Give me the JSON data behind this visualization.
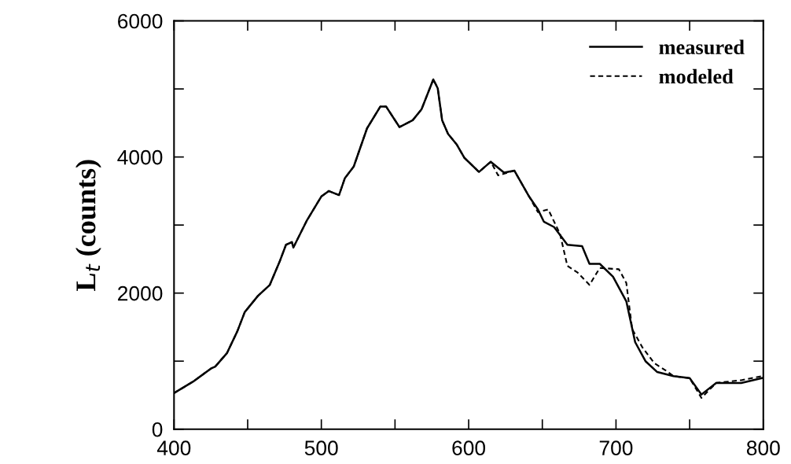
{
  "chart_data": {
    "type": "line",
    "ylabel": "L$_{t}$ (counts)",
    "xlim": [
      400,
      800
    ],
    "ylim": [
      0,
      6000
    ],
    "xticks": [
      400,
      {
        "value": 450,
        "label": null
      },
      500,
      {
        "value": 550,
        "label": null
      },
      600,
      {
        "value": 650,
        "label": null
      },
      700,
      {
        "value": 750,
        "label": null
      },
      800
    ],
    "yticks": [
      0,
      {
        "value": 1000,
        "label": null
      },
      2000,
      {
        "value": 3000,
        "label": null
      },
      4000,
      {
        "value": 5000,
        "label": null
      },
      6000
    ],
    "grid": false,
    "legend": "top right",
    "marker": "none",
    "series": [
      {
        "name": "measured",
        "color": "#000000",
        "line_style": "solid",
        "x": [
          400,
          413,
          425,
          428,
          436,
          443,
          448,
          457,
          465,
          472,
          476,
          480,
          481,
          490,
          500,
          505,
          512,
          516,
          522,
          531,
          540,
          544,
          553,
          562,
          568,
          576,
          579,
          582,
          586,
          592,
          597,
          607,
          615,
          624,
          631,
          641,
          647,
          651,
          658,
          667,
          677,
          682,
          689,
          698,
          707,
          713,
          720,
          728,
          739,
          750,
          758,
          768,
          785,
          799
        ],
        "values": [
          530,
          700,
          890,
          920,
          1120,
          1440,
          1720,
          1960,
          2120,
          2480,
          2710,
          2750,
          2670,
          3060,
          3420,
          3500,
          3440,
          3690,
          3860,
          4420,
          4740,
          4740,
          4440,
          4540,
          4700,
          5140,
          5010,
          4540,
          4340,
          4180,
          3990,
          3780,
          3930,
          3770,
          3800,
          3420,
          3230,
          3050,
          2970,
          2710,
          2690,
          2430,
          2430,
          2240,
          1880,
          1280,
          1000,
          840,
          780,
          750,
          510,
          680,
          680,
          750
        ]
      },
      {
        "name": "modeled",
        "color": "#000000",
        "line_style": "dashed",
        "x": [
          400,
          413,
          425,
          428,
          436,
          443,
          448,
          457,
          465,
          472,
          476,
          480,
          481,
          490,
          500,
          505,
          512,
          516,
          522,
          531,
          540,
          544,
          553,
          562,
          568,
          576,
          579,
          582,
          586,
          592,
          597,
          607,
          615,
          620,
          631,
          641,
          647,
          654,
          662,
          667,
          674,
          682,
          689,
          702,
          707,
          711,
          718,
          726,
          734,
          739,
          750,
          758,
          768,
          785,
          799
        ],
        "values": [
          530,
          700,
          890,
          920,
          1120,
          1440,
          1720,
          1960,
          2120,
          2480,
          2710,
          2750,
          2670,
          3060,
          3420,
          3500,
          3440,
          3690,
          3860,
          4420,
          4740,
          4740,
          4440,
          4540,
          4700,
          5140,
          5010,
          4540,
          4340,
          4180,
          3990,
          3780,
          3930,
          3730,
          3800,
          3420,
          3190,
          3230,
          2870,
          2400,
          2300,
          2120,
          2370,
          2350,
          2150,
          1470,
          1200,
          970,
          860,
          780,
          750,
          460,
          680,
          720,
          780
        ]
      }
    ]
  }
}
